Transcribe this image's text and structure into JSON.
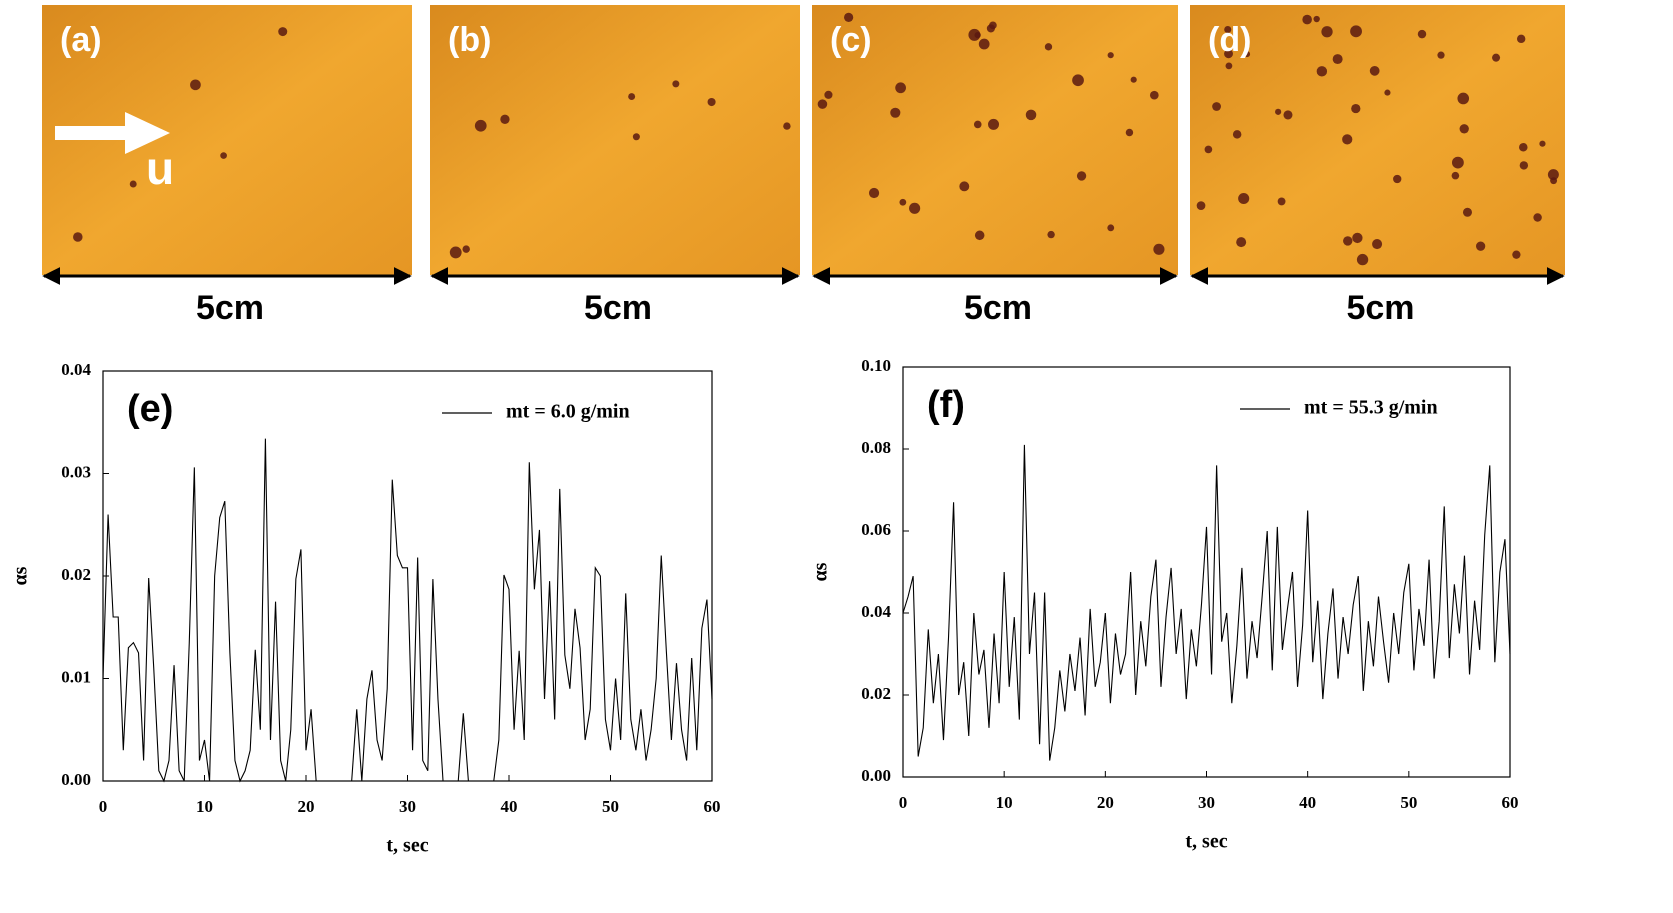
{
  "photos": [
    {
      "label": "(a)",
      "scale": "5cm"
    },
    {
      "label": "(b)",
      "scale": "5cm"
    },
    {
      "label": "(c)",
      "scale": "5cm"
    },
    {
      "label": "(d)",
      "scale": "5cm"
    }
  ],
  "flow_label": "u",
  "chart_data": [
    {
      "type": "line",
      "annotation": "(e)",
      "x_label": "t, sec",
      "y_label": "αs",
      "legend": "upper right",
      "xlim": [
        0,
        60
      ],
      "xticks": [
        0,
        10,
        20,
        30,
        40,
        50,
        60
      ],
      "ylim": [
        0,
        0.04
      ],
      "yticks": [
        {
          "value": 0,
          "label": "0.00"
        },
        {
          "value": 0.01,
          "label": "0.01"
        },
        {
          "value": 0.02,
          "label": "0.02"
        },
        {
          "value": 0.03,
          "label": "0.03"
        },
        {
          "value": 0.04,
          "label": "0.04"
        }
      ],
      "x": [
        0,
        0.5,
        1,
        1.5,
        2,
        2.5,
        3,
        3.5,
        4,
        4.5,
        5,
        5.5,
        6,
        6.5,
        7,
        7.5,
        8,
        8.5,
        9,
        9.5,
        10,
        10.5,
        11,
        11.5,
        12,
        12.5,
        13,
        13.5,
        14,
        14.5,
        15,
        15.5,
        16,
        16.5,
        17,
        17.5,
        18,
        18.5,
        19,
        19.5,
        20,
        20.5,
        21,
        21.5,
        22,
        22.5,
        23,
        23.5,
        24,
        24.5,
        25,
        25.5,
        26,
        26.5,
        27,
        27.5,
        28,
        28.5,
        29,
        29.5,
        30,
        30.5,
        31,
        31.5,
        32,
        32.5,
        33,
        33.5,
        34,
        34.5,
        35,
        35.5,
        36,
        36.5,
        37,
        37.5,
        38,
        38.5,
        39,
        39.5,
        40,
        40.5,
        41,
        41.5,
        42,
        42.5,
        43,
        43.5,
        44,
        44.5,
        45,
        45.5,
        46,
        46.5,
        47,
        47.5,
        48,
        48.5,
        49,
        49.5,
        50,
        50.5,
        51,
        51.5,
        52,
        52.5,
        53,
        53.5,
        54,
        54.5,
        55,
        55.5,
        56,
        56.5,
        57,
        57.5,
        58,
        58.5,
        59,
        59.5,
        60
      ],
      "series": [
        {
          "name": "mt = 6.0 g/min",
          "color": "#000000",
          "values": [
            0.01,
            0.026,
            0.016,
            0.016,
            0.003,
            0.013,
            0.0135,
            0.0125,
            0.002,
            0.0198,
            0.011,
            0.001,
            0,
            0.002,
            0.0113,
            0.001,
            0,
            0.0135,
            0.0306,
            0.002,
            0.004,
            0,
            0.02,
            0.0257,
            0.0273,
            0.0125,
            0.002,
            0,
            0.001,
            0.003,
            0.0128,
            0.005,
            0.0334,
            0.004,
            0.0175,
            0.002,
            0,
            0.005,
            0.0197,
            0.0226,
            0.003,
            0.007,
            0,
            0,
            0,
            0,
            0,
            0,
            0,
            0,
            0.007,
            0,
            0.008,
            0.0108,
            0.004,
            0.002,
            0.009,
            0.0294,
            0.022,
            0.0208,
            0.0208,
            0.003,
            0.0218,
            0.002,
            0.001,
            0.0197,
            0.008,
            0,
            0,
            0,
            0,
            0.0066,
            0,
            0,
            0,
            0,
            0,
            0,
            0.004,
            0.0201,
            0.0187,
            0.005,
            0.0127,
            0.004,
            0.0311,
            0.0187,
            0.0245,
            0.008,
            0.0195,
            0.006,
            0.0285,
            0.0123,
            0.009,
            0.0168,
            0.013,
            0.004,
            0.007,
            0.0208,
            0.02,
            0.006,
            0.003,
            0.01,
            0.004,
            0.0183,
            0.006,
            0.003,
            0.007,
            0.002,
            0.005,
            0.01,
            0.022,
            0.0127,
            0.004,
            0.0115,
            0.005,
            0.002,
            0.012,
            0.003,
            0.0149,
            0.0177,
            0.008
          ]
        }
      ]
    },
    {
      "type": "line",
      "annotation": "(f)",
      "x_label": "t, sec",
      "y_label": "αs",
      "legend": "upper right",
      "xlim": [
        0,
        60
      ],
      "xticks": [
        0,
        10,
        20,
        30,
        40,
        50,
        60
      ],
      "ylim": [
        0,
        0.1
      ],
      "yticks": [
        {
          "value": 0,
          "label": "0.00"
        },
        {
          "value": 0.02,
          "label": "0.02"
        },
        {
          "value": 0.04,
          "label": "0.04"
        },
        {
          "value": 0.06,
          "label": "0.06"
        },
        {
          "value": 0.08,
          "label": "0.08"
        },
        {
          "value": 0.1,
          "label": "0.10"
        }
      ],
      "x": [
        0,
        0.5,
        1,
        1.5,
        2,
        2.5,
        3,
        3.5,
        4,
        4.5,
        5,
        5.5,
        6,
        6.5,
        7,
        7.5,
        8,
        8.5,
        9,
        9.5,
        10,
        10.5,
        11,
        11.5,
        12,
        12.5,
        13,
        13.5,
        14,
        14.5,
        15,
        15.5,
        16,
        16.5,
        17,
        17.5,
        18,
        18.5,
        19,
        19.5,
        20,
        20.5,
        21,
        21.5,
        22,
        22.5,
        23,
        23.5,
        24,
        24.5,
        25,
        25.5,
        26,
        26.5,
        27,
        27.5,
        28,
        28.5,
        29,
        29.5,
        30,
        30.5,
        31,
        31.5,
        32,
        32.5,
        33,
        33.5,
        34,
        34.5,
        35,
        35.5,
        36,
        36.5,
        37,
        37.5,
        38,
        38.5,
        39,
        39.5,
        40,
        40.5,
        41,
        41.5,
        42,
        42.5,
        43,
        43.5,
        44,
        44.5,
        45,
        45.5,
        46,
        46.5,
        47,
        47.5,
        48,
        48.5,
        49,
        49.5,
        50,
        50.5,
        51,
        51.5,
        52,
        52.5,
        53,
        53.5,
        54,
        54.5,
        55,
        55.5,
        56,
        56.5,
        57,
        57.5,
        58,
        58.5,
        59,
        59.5,
        60
      ],
      "series": [
        {
          "name": "mt = 55.3 g/min",
          "color": "#000000",
          "values": [
            0.04,
            0.044,
            0.049,
            0.005,
            0.012,
            0.036,
            0.018,
            0.03,
            0.009,
            0.034,
            0.067,
            0.02,
            0.028,
            0.01,
            0.04,
            0.025,
            0.031,
            0.012,
            0.035,
            0.018,
            0.05,
            0.022,
            0.039,
            0.014,
            0.081,
            0.03,
            0.045,
            0.008,
            0.045,
            0.004,
            0.012,
            0.026,
            0.016,
            0.03,
            0.021,
            0.034,
            0.015,
            0.041,
            0.022,
            0.028,
            0.04,
            0.018,
            0.035,
            0.025,
            0.03,
            0.05,
            0.02,
            0.038,
            0.027,
            0.044,
            0.053,
            0.022,
            0.039,
            0.051,
            0.03,
            0.041,
            0.019,
            0.036,
            0.027,
            0.042,
            0.061,
            0.025,
            0.076,
            0.033,
            0.04,
            0.018,
            0.032,
            0.051,
            0.024,
            0.038,
            0.029,
            0.044,
            0.06,
            0.026,
            0.061,
            0.031,
            0.041,
            0.05,
            0.022,
            0.037,
            0.065,
            0.028,
            0.043,
            0.019,
            0.035,
            0.046,
            0.024,
            0.039,
            0.03,
            0.042,
            0.049,
            0.021,
            0.038,
            0.027,
            0.044,
            0.033,
            0.023,
            0.04,
            0.03,
            0.045,
            0.052,
            0.026,
            0.041,
            0.032,
            0.053,
            0.024,
            0.038,
            0.066,
            0.029,
            0.047,
            0.035,
            0.054,
            0.025,
            0.043,
            0.031,
            0.059,
            0.076,
            0.028,
            0.05,
            0.058,
            0.03
          ]
        }
      ]
    }
  ]
}
